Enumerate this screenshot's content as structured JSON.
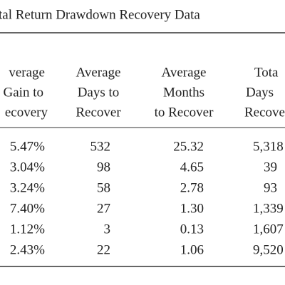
{
  "title": "tal Return Drawdown Recovery Data",
  "table": {
    "headers": [
      [
        "verage",
        "Gain to",
        "ecovery"
      ],
      [
        "Average",
        "Days to",
        "Recover"
      ],
      [
        "Average",
        "Months",
        "to Recover"
      ],
      [
        "Tota",
        "Days",
        "Recove"
      ]
    ],
    "rows": [
      [
        "5.47%",
        "532",
        "25.32",
        "5,318"
      ],
      [
        "3.04%",
        "98",
        "4.65",
        "39"
      ],
      [
        "3.24%",
        "58",
        "2.78",
        "93"
      ],
      [
        "7.40%",
        "27",
        "1.30",
        "1,339"
      ],
      [
        "1.12%",
        "3",
        "0.13",
        "1,607"
      ],
      [
        "2.43%",
        "22",
        "1.06",
        "9,520"
      ]
    ]
  }
}
